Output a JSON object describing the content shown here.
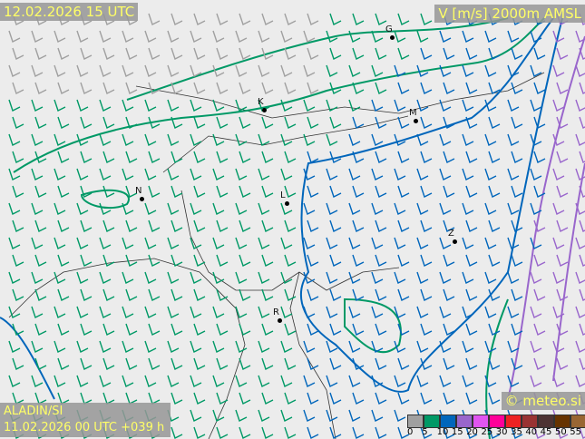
{
  "header": {
    "valid_time": "12.02.2026 15 UTC",
    "parameter": "V [m/s] 2000m AMSL"
  },
  "footer": {
    "model": "ALADIN/SI",
    "run": "11.02.2026 00 UTC +039 h",
    "copyright": "© meteo.si"
  },
  "legend": {
    "unit": "m/s",
    "ticks": [
      "0",
      "5",
      "10",
      "15",
      "20",
      "25",
      "30",
      "35",
      "40",
      "45",
      "50",
      "55"
    ],
    "colors": [
      "#a0a0a0",
      "#009966",
      "#0066bb",
      "#9966cc",
      "#e055f0",
      "#ff0099",
      "#ee2222",
      "#993333",
      "#4d3333",
      "#663300",
      "#996633",
      "#b89966"
    ]
  },
  "cities": [
    {
      "label": "G"
    },
    {
      "label": "K"
    },
    {
      "label": "M"
    },
    {
      "label": "N"
    },
    {
      "label": "L"
    },
    {
      "label": "Z"
    },
    {
      "label": "R"
    }
  ]
}
